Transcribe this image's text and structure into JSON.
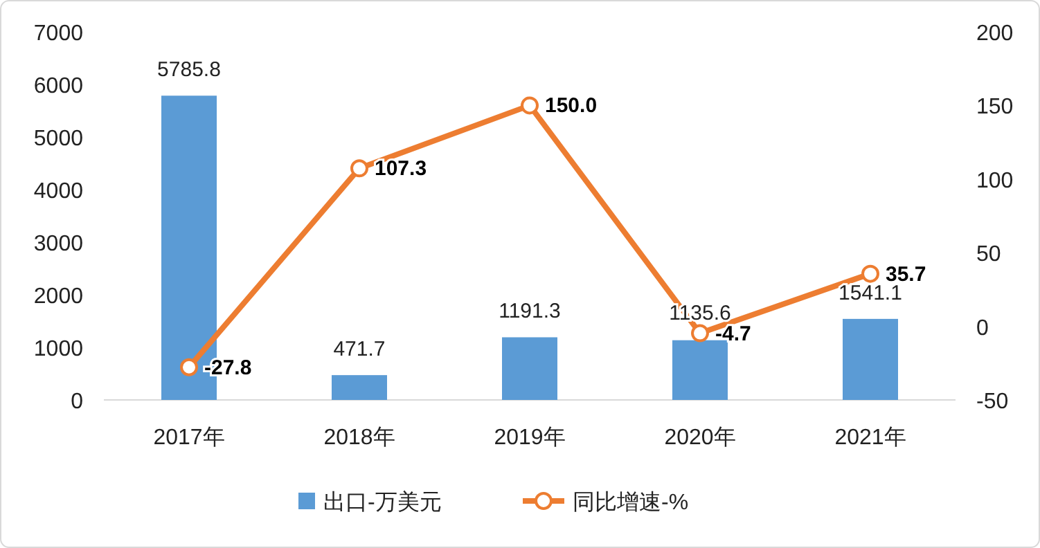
{
  "chart_data": {
    "type": "bar",
    "categories": [
      "2017年",
      "2018年",
      "2019年",
      "2020年",
      "2021年"
    ],
    "series": [
      {
        "name": "出口-万美元",
        "color": "#5b9bd5",
        "values": [
          5785.8,
          471.7,
          1191.3,
          1135.6,
          1541.1
        ],
        "value_labels": [
          "5785.8",
          "471.7",
          "1191.3",
          "1135.6",
          "1541.1"
        ]
      },
      {
        "name": "同比增速-%",
        "type": "line",
        "axis": "y2",
        "color": "#ed7d31",
        "values": [
          -27.8,
          107.3,
          150.0,
          -4.7,
          35.7
        ],
        "value_labels": [
          "-27.8",
          "107.3",
          "150.0",
          "-4.7",
          "35.7"
        ]
      }
    ],
    "ylim": [
      0,
      7000
    ],
    "yticks": [
      0,
      1000,
      2000,
      3000,
      4000,
      5000,
      6000,
      7000
    ],
    "y2lim": [
      -50,
      200
    ],
    "y2ticks": [
      -50,
      0,
      50,
      100,
      150,
      200
    ],
    "legend": "bottom",
    "grid": false,
    "marker": "circle"
  }
}
